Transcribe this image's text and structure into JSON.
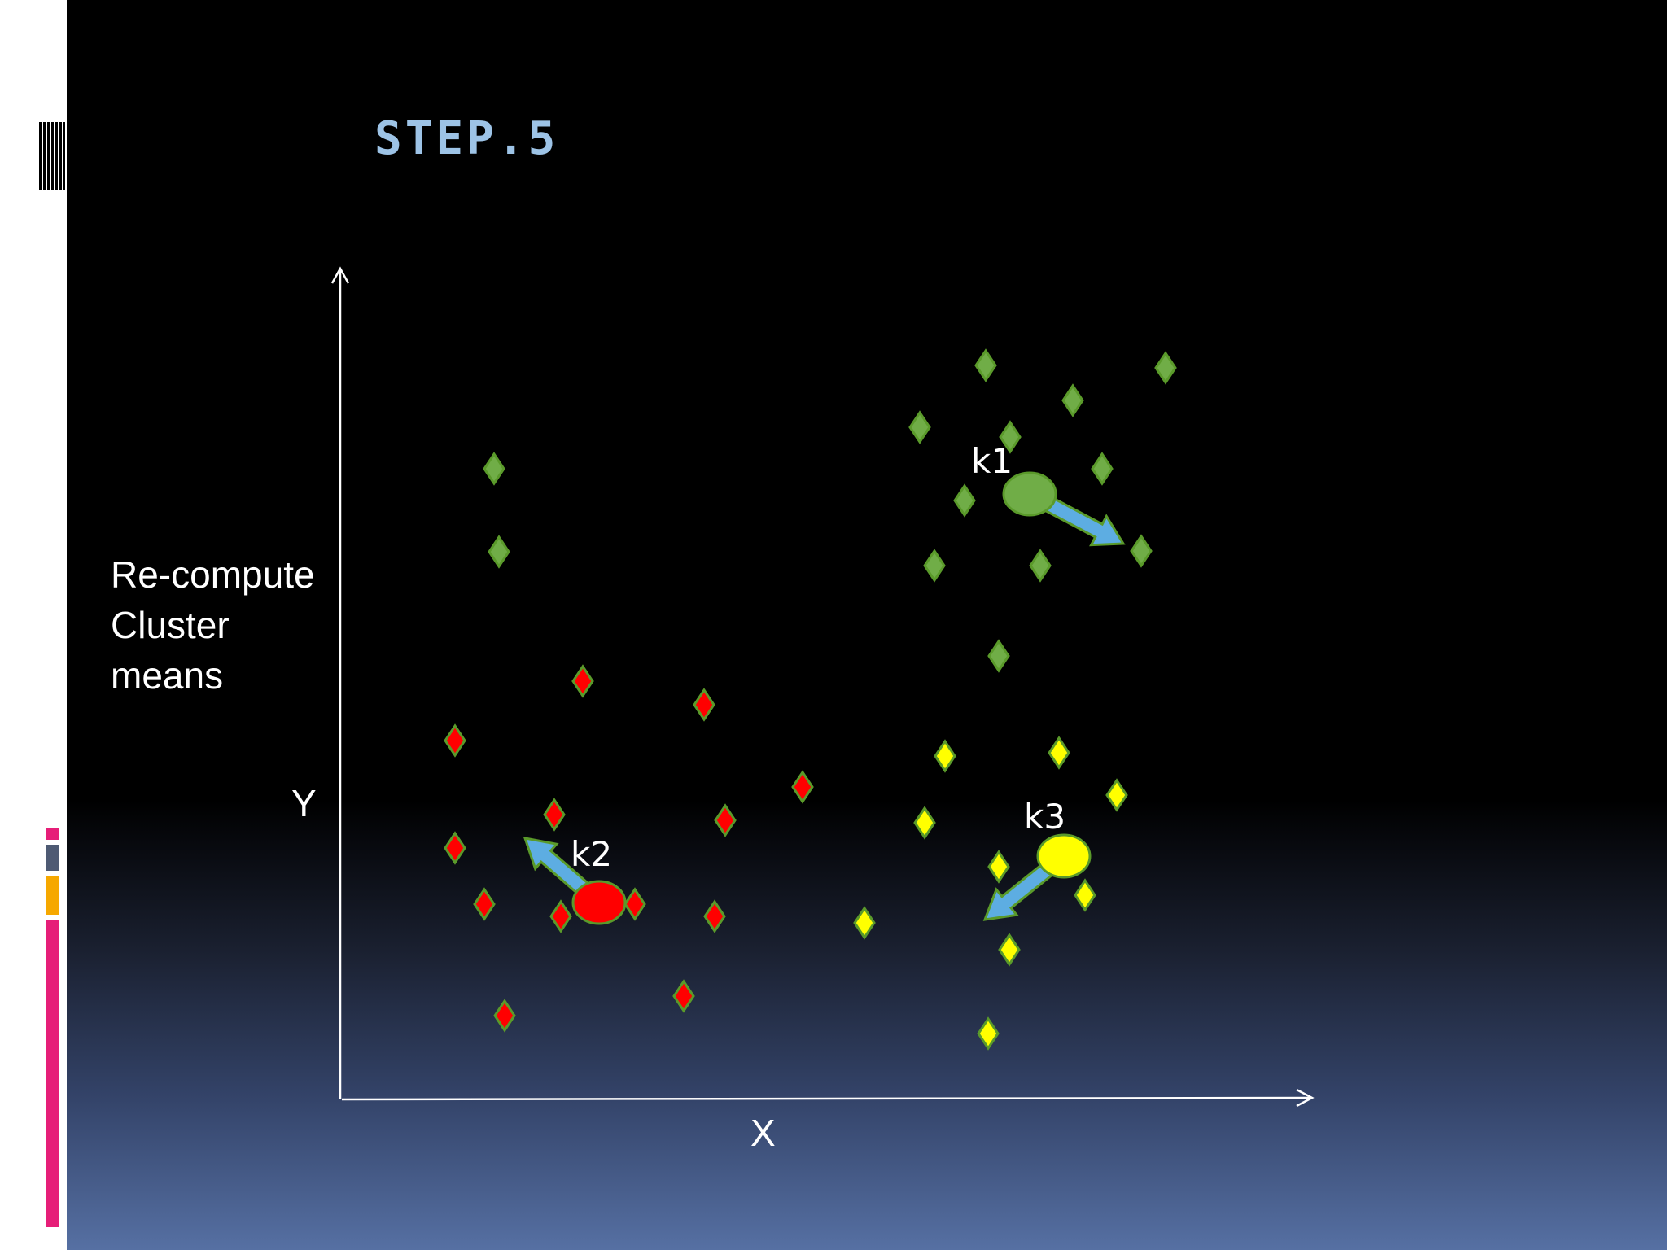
{
  "slide": {
    "title": "STEP.5",
    "description_lines": [
      "Re-compute",
      "Cluster",
      "means"
    ],
    "y_axis_label": "Y",
    "x_axis_label": "X",
    "colors": {
      "title": "#9dc3e6",
      "green_cluster": "#70ad47",
      "red_cluster": "#ff0000",
      "yellow_cluster": "#ffff00",
      "marker_outline": "#5a9a2a",
      "arrow": "#5dade2",
      "axis": "#ffffff"
    }
  },
  "clusters": [
    {
      "name": "k1",
      "color": "#70ad47",
      "centroid": [
        1265,
        607
      ],
      "arrow_to": [
        1380,
        668
      ],
      "label_pos": [
        1193,
        582
      ],
      "points": [
        [
          1211,
          449
        ],
        [
          1432,
          452
        ],
        [
          1318,
          492
        ],
        [
          1130,
          525
        ],
        [
          1241,
          537
        ],
        [
          1354,
          576
        ],
        [
          1185,
          615
        ],
        [
          1402,
          677
        ],
        [
          1148,
          695
        ],
        [
          1278,
          695
        ],
        [
          1227,
          806
        ],
        [
          607,
          576
        ],
        [
          613,
          678
        ]
      ]
    },
    {
      "name": "k2",
      "color": "#ff0000",
      "centroid": [
        736,
        1109
      ],
      "arrow_to": [
        645,
        1030
      ],
      "label_pos": [
        701,
        1065
      ],
      "points": [
        [
          716,
          837
        ],
        [
          865,
          866
        ],
        [
          559,
          910
        ],
        [
          986,
          967
        ],
        [
          681,
          1001
        ],
        [
          891,
          1008
        ],
        [
          559,
          1042
        ],
        [
          595,
          1111
        ],
        [
          689,
          1126
        ],
        [
          780,
          1111
        ],
        [
          878,
          1126
        ],
        [
          620,
          1248
        ],
        [
          840,
          1224
        ]
      ]
    },
    {
      "name": "k3",
      "color": "#ffff00",
      "centroid": [
        1307,
        1052
      ],
      "arrow_to": [
        1210,
        1130
      ],
      "label_pos": [
        1258,
        1019
      ],
      "points": [
        [
          1161,
          929
        ],
        [
          1301,
          925
        ],
        [
          1372,
          977
        ],
        [
          1136,
          1011
        ],
        [
          1227,
          1065
        ],
        [
          1333,
          1100
        ],
        [
          1062,
          1134
        ],
        [
          1240,
          1167
        ],
        [
          1214,
          1270
        ]
      ]
    }
  ]
}
